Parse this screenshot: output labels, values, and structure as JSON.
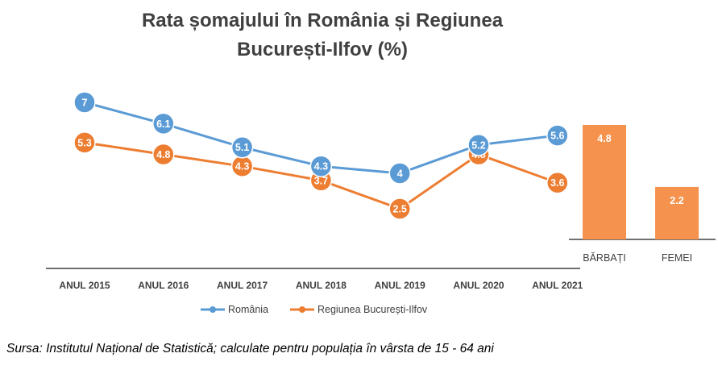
{
  "chart_data": [
    {
      "type": "line",
      "title": "Rata șomajului în România și Regiunea București-Ilfov (%)",
      "title_lines": [
        "Rata șomajului în România și Regiunea",
        "București-Ilfov (%)"
      ],
      "categories": [
        "ANUL 2015",
        "ANUL 2016",
        "ANUL 2017",
        "ANUL 2018",
        "ANUL 2019",
        "ANUL 2020",
        "ANUL 2021"
      ],
      "series": [
        {
          "name": "România",
          "color": "#5B9BD5",
          "values": [
            7,
            6.1,
            5.1,
            4.3,
            4,
            5.2,
            5.6
          ]
        },
        {
          "name": "Regiunea București-Ilfov",
          "color": "#ED7D31",
          "values": [
            5.3,
            4.8,
            4.3,
            3.7,
            2.5,
            4.8,
            3.6
          ]
        }
      ],
      "ylim": [
        1.5,
        7.5
      ],
      "legend": "bottom"
    },
    {
      "type": "bar",
      "categories": [
        "BĂRBAȚI",
        "FEMEI"
      ],
      "values": [
        4.8,
        2.2
      ],
      "color": "#F4924E",
      "ylim": [
        0,
        5.3
      ]
    }
  ],
  "source": "Sursa: Institutul Național de Statistică; calculate pentru populația în vârsta de 15 - 64 ani"
}
